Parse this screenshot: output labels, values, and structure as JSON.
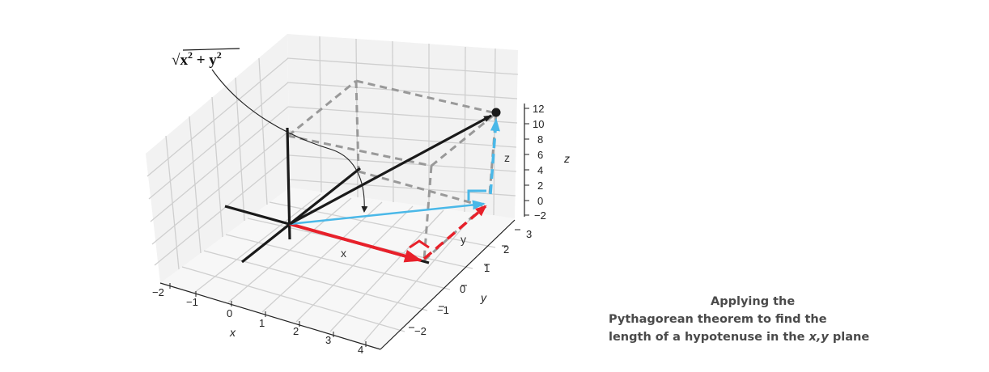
{
  "formula": {
    "root": "√",
    "x": "x",
    "mid": " + ",
    "y": "y",
    "sup": "2"
  },
  "axes": {
    "x_label": "x",
    "y_label": "y",
    "z_label": "z",
    "x_ticks": [
      "−2",
      "−1",
      "0",
      "1",
      "2",
      "3",
      "4"
    ],
    "y_ticks": [
      "−2",
      "−1",
      "0",
      "1",
      "2",
      "3"
    ],
    "z_ticks": [
      "12",
      "10",
      "8",
      "6",
      "4",
      "2",
      "0",
      "−2"
    ]
  },
  "vector_labels": {
    "x": "x",
    "y": "y",
    "z": "z"
  },
  "colors": {
    "x_component": "#e8202a",
    "y_component": "#e8202a",
    "hypotenuse": "#4ab8e8",
    "z_component": "#4ab8e8",
    "vector": "#1a1a1a",
    "dashed": "#999999"
  },
  "caption": {
    "line1": "Applying the",
    "line2": "Pythagorean theorem to find the",
    "line3_pre": "length of a hypotenuse in the ",
    "line3_var": "x,y",
    "line3_post": " plane"
  }
}
